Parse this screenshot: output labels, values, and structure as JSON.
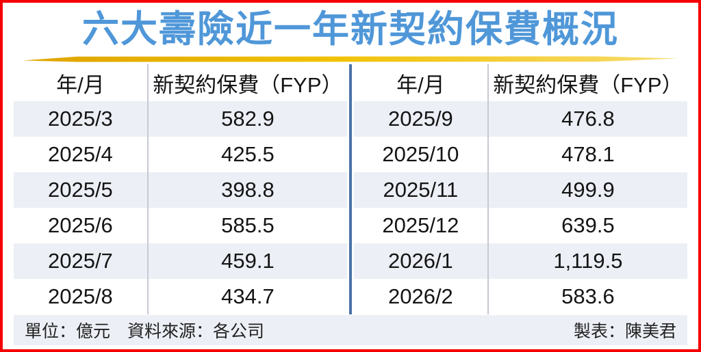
{
  "title": "六大壽險近一年新契約保費概況",
  "table": {
    "halves": [
      {
        "headers": [
          "年/月",
          "新契約保費（FYP）"
        ],
        "rows": [
          [
            "2025/3",
            "582.9"
          ],
          [
            "2025/4",
            "425.5"
          ],
          [
            "2025/5",
            "398.8"
          ],
          [
            "2025/6",
            "585.5"
          ],
          [
            "2025/7",
            "459.1"
          ],
          [
            "2025/8",
            "434.7"
          ]
        ]
      },
      {
        "headers": [
          "年/月",
          "新契約保費（FYP）"
        ],
        "rows": [
          [
            "2025/9",
            "476.8"
          ],
          [
            "2025/10",
            "478.1"
          ],
          [
            "2025/11",
            "499.9"
          ],
          [
            "2025/12",
            "639.5"
          ],
          [
            "2026/1",
            "1,119.5"
          ],
          [
            "2026/2",
            "583.6"
          ]
        ]
      }
    ]
  },
  "footer": {
    "left_text": "單位：億元　資料來源：各公司",
    "credit": "製表：陳美君"
  },
  "colors": {
    "frame_border": "#f50000",
    "title_blue": "#4f97d8",
    "underline_gold": "#f0c000",
    "row_shade": "#eceff5",
    "center_divider_blue": "#4a72a8",
    "column_divider_gray": "#c6cad2"
  },
  "chart_data": {
    "type": "table",
    "title": "六大壽險近一年新契約保費概況",
    "series_label": "新契約保費（FYP）",
    "unit": "億元",
    "categories": [
      "2025/3",
      "2025/4",
      "2025/5",
      "2025/6",
      "2025/7",
      "2025/8",
      "2025/9",
      "2025/10",
      "2025/11",
      "2025/12",
      "2026/1",
      "2026/2"
    ],
    "values": [
      582.9,
      425.5,
      398.8,
      585.5,
      459.1,
      434.7,
      476.8,
      478.1,
      499.9,
      639.5,
      1119.5,
      583.6
    ],
    "source": "各公司",
    "credit": "陳美君"
  }
}
